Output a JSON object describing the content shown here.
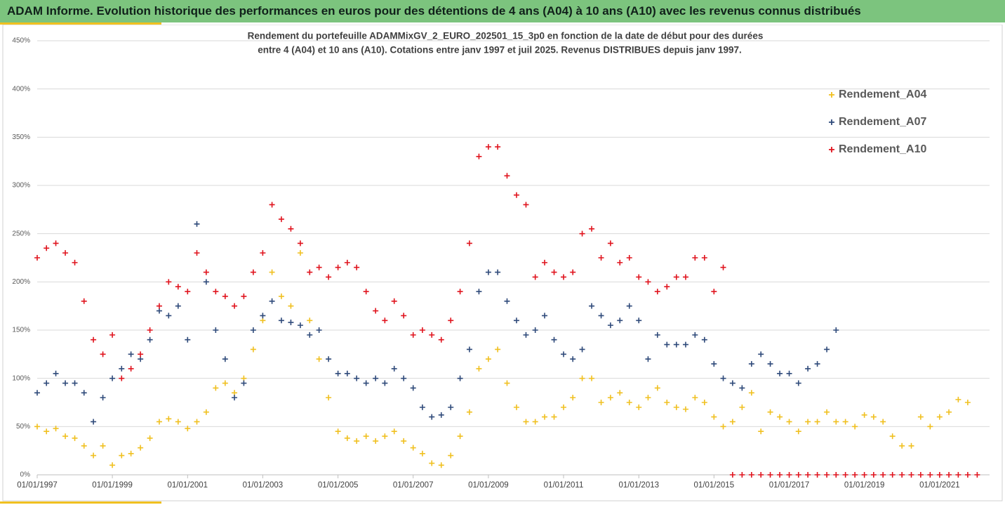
{
  "header": {
    "title": "ADAM Informe. Evolution historique des performances en euros pour des détentions de 4 ans (A04) à 10 ans (A10) avec les revenus connus distribués"
  },
  "chart_data": {
    "type": "scatter",
    "title": "Rendement du portefeuille ADAMMixGV_2_EURO_202501_15_3p0 en fonction de la date de début pour des durées",
    "subtitle": "entre 4 (A04) et 10 ans (A10). Cotations entre janv 1997 et juil 2025. Revenus DISTRIBUES depuis janv 1997.",
    "grid": true,
    "legend": "right",
    "xlim": [
      "1997-01-01",
      "2022-05-01"
    ],
    "xticks": [
      {
        "value": "1997-01-01",
        "label": "01/01/1997"
      },
      {
        "value": "1999-01-01",
        "label": "01/01/1999"
      },
      {
        "value": "2001-01-01",
        "label": "01/01/2001"
      },
      {
        "value": "2003-01-01",
        "label": "01/01/2003"
      },
      {
        "value": "2005-01-01",
        "label": "01/01/2005"
      },
      {
        "value": "2007-01-01",
        "label": "01/01/2007"
      },
      {
        "value": "2009-01-01",
        "label": "01/01/2009"
      },
      {
        "value": "2011-01-01",
        "label": "01/01/2011"
      },
      {
        "value": "2013-01-01",
        "label": "01/01/2013"
      },
      {
        "value": "2015-01-01",
        "label": "01/01/2015"
      },
      {
        "value": "2017-01-01",
        "label": "01/01/2017"
      },
      {
        "value": "2019-01-01",
        "label": "01/01/2019"
      },
      {
        "value": "2021-01-01",
        "label": "01/01/2021"
      }
    ],
    "ylim": [
      0,
      450
    ],
    "yticks": [
      {
        "value": 0,
        "label": "0%"
      },
      {
        "value": 50,
        "label": "50%"
      },
      {
        "value": 100,
        "label": "100%"
      },
      {
        "value": 150,
        "label": "150%"
      },
      {
        "value": 200,
        "label": "200%"
      },
      {
        "value": 250,
        "label": "250%"
      },
      {
        "value": 300,
        "label": "300%"
      },
      {
        "value": 350,
        "label": "350%"
      },
      {
        "value": 400,
        "label": "400%"
      },
      {
        "value": 450,
        "label": "450%"
      }
    ],
    "x": [
      "1997-01-01",
      "1997-04-01",
      "1997-07-01",
      "1997-10-01",
      "1998-01-01",
      "1998-04-01",
      "1998-07-01",
      "1998-10-01",
      "1999-01-01",
      "1999-04-01",
      "1999-07-01",
      "1999-10-01",
      "2000-01-01",
      "2000-04-01",
      "2000-07-01",
      "2000-10-01",
      "2001-01-01",
      "2001-04-01",
      "2001-07-01",
      "2001-10-01",
      "2002-01-01",
      "2002-04-01",
      "2002-07-01",
      "2002-10-01",
      "2003-01-01",
      "2003-04-01",
      "2003-07-01",
      "2003-10-01",
      "2004-01-01",
      "2004-04-01",
      "2004-07-01",
      "2004-10-01",
      "2005-01-01",
      "2005-04-01",
      "2005-07-01",
      "2005-10-01",
      "2006-01-01",
      "2006-04-01",
      "2006-07-01",
      "2006-10-01",
      "2007-01-01",
      "2007-04-01",
      "2007-07-01",
      "2007-10-01",
      "2008-01-01",
      "2008-04-01",
      "2008-07-01",
      "2008-10-01",
      "2009-01-01",
      "2009-04-01",
      "2009-07-01",
      "2009-10-01",
      "2010-01-01",
      "2010-04-01",
      "2010-07-01",
      "2010-10-01",
      "2011-01-01",
      "2011-04-01",
      "2011-07-01",
      "2011-10-01",
      "2012-01-01",
      "2012-04-01",
      "2012-07-01",
      "2012-10-01",
      "2013-01-01",
      "2013-04-01",
      "2013-07-01",
      "2013-10-01",
      "2014-01-01",
      "2014-04-01",
      "2014-07-01",
      "2014-10-01",
      "2015-01-01",
      "2015-04-01",
      "2015-07-01",
      "2015-10-01",
      "2016-01-01",
      "2016-04-01",
      "2016-07-01",
      "2016-10-01",
      "2017-01-01",
      "2017-04-01",
      "2017-07-01",
      "2017-10-01",
      "2018-01-01",
      "2018-04-01",
      "2018-07-01",
      "2018-10-01",
      "2019-01-01",
      "2019-04-01",
      "2019-07-01",
      "2019-10-01",
      "2020-01-01",
      "2020-04-01",
      "2020-07-01",
      "2020-10-01",
      "2021-01-01",
      "2021-04-01",
      "2021-07-01",
      "2021-10-01",
      "2022-01-01"
    ],
    "series": [
      {
        "name": "Rendement_A04",
        "color": "#f0c020",
        "values": [
          50,
          45,
          48,
          40,
          38,
          30,
          20,
          30,
          10,
          20,
          22,
          28,
          38,
          55,
          58,
          55,
          48,
          55,
          65,
          90,
          95,
          85,
          100,
          130,
          160,
          210,
          185,
          175,
          230,
          160,
          120,
          80,
          45,
          38,
          35,
          40,
          35,
          40,
          45,
          35,
          28,
          22,
          12,
          10,
          20,
          40,
          65,
          110,
          120,
          130,
          95,
          70,
          55,
          55,
          60,
          60,
          70,
          80,
          100,
          100,
          75,
          80,
          85,
          75,
          70,
          80,
          90,
          75,
          70,
          68,
          80,
          75,
          60,
          50,
          55,
          70,
          85,
          45,
          65,
          60,
          55,
          45,
          55,
          55,
          65,
          55,
          55,
          50,
          62,
          60,
          55,
          40,
          30,
          30,
          60,
          50,
          60,
          65,
          78,
          75,
          null
        ]
      },
      {
        "name": "Rendement_A07",
        "color": "#2f4a7a",
        "values": [
          85,
          95,
          105,
          95,
          95,
          85,
          55,
          80,
          100,
          110,
          125,
          120,
          140,
          170,
          165,
          175,
          140,
          260,
          200,
          150,
          120,
          80,
          95,
          150,
          165,
          180,
          160,
          158,
          155,
          145,
          150,
          120,
          105,
          105,
          100,
          95,
          100,
          95,
          110,
          100,
          90,
          70,
          60,
          62,
          70,
          100,
          130,
          190,
          210,
          210,
          180,
          160,
          145,
          150,
          165,
          140,
          125,
          120,
          130,
          175,
          165,
          155,
          160,
          175,
          160,
          120,
          145,
          135,
          135,
          135,
          145,
          140,
          115,
          100,
          95,
          90,
          115,
          125,
          115,
          105,
          105,
          95,
          110,
          115,
          130,
          150,
          null,
          null,
          null,
          null,
          null,
          null,
          null,
          null,
          null,
          null,
          null,
          null,
          null,
          null,
          null
        ]
      },
      {
        "name": "Rendement_A10",
        "color": "#e0141e",
        "values": [
          225,
          235,
          240,
          230,
          220,
          180,
          140,
          125,
          145,
          100,
          110,
          125,
          150,
          175,
          200,
          195,
          190,
          230,
          210,
          190,
          185,
          175,
          185,
          210,
          230,
          280,
          265,
          255,
          240,
          210,
          215,
          205,
          215,
          220,
          215,
          190,
          170,
          160,
          180,
          165,
          145,
          150,
          145,
          140,
          160,
          190,
          240,
          330,
          340,
          340,
          310,
          290,
          280,
          205,
          220,
          210,
          205,
          210,
          250,
          255,
          225,
          240,
          220,
          225,
          205,
          200,
          190,
          195,
          205,
          205,
          225,
          225,
          190,
          215,
          0,
          0,
          0,
          0,
          0,
          0,
          0,
          0,
          0,
          0,
          0,
          0,
          0,
          0,
          0,
          0,
          0,
          0,
          0,
          0,
          0,
          0,
          0,
          0,
          0,
          0,
          0
        ]
      }
    ]
  }
}
